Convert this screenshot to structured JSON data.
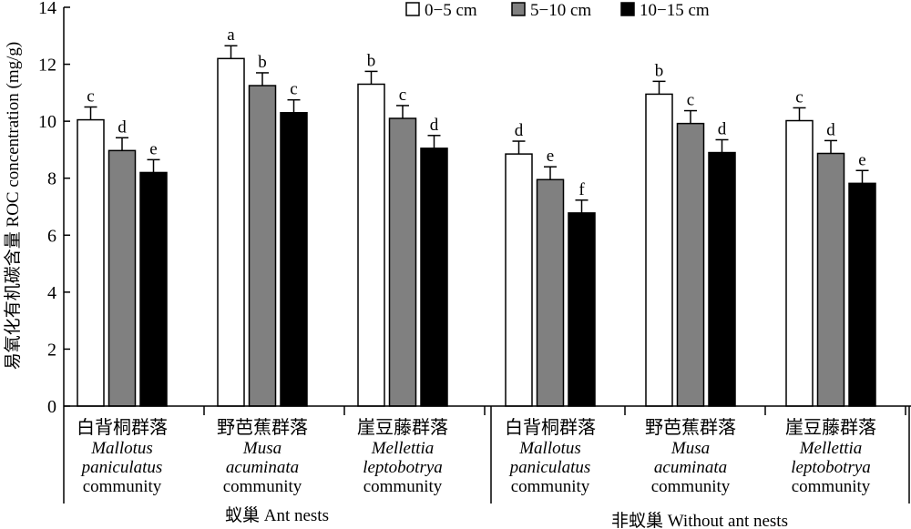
{
  "chart_data": {
    "type": "bar",
    "ylabel": "易氧化有机碳含量 ROC concentration (mg/g)",
    "ylim": [
      0,
      14
    ],
    "yticks": [
      0,
      2,
      4,
      6,
      8,
      10,
      12,
      14
    ],
    "grid": false,
    "legend_placement": "top-right",
    "categories": [
      {
        "cn": "白背桐群落",
        "latin1": "Mallotus",
        "latin2": "paniculatus",
        "en": "community"
      },
      {
        "cn": "野芭蕉群落",
        "latin1": "Musa",
        "latin2": "acuminata",
        "en": "community"
      },
      {
        "cn": "崖豆藤群落",
        "latin1": "Mellettia",
        "latin2": "leptobotrya",
        "en": "community"
      },
      {
        "cn": "白背桐群落",
        "latin1": "Mallotus",
        "latin2": "paniculatus",
        "en": "community"
      },
      {
        "cn": "野芭蕉群落",
        "latin1": "Musa",
        "latin2": "acuminata",
        "en": "community"
      },
      {
        "cn": "崖豆藤群落",
        "latin1": "Mellettia",
        "latin2": "leptobotrya",
        "en": "community"
      }
    ],
    "groups": [
      {
        "label": "蚁巢 Ant nests",
        "categories": [
          0,
          1,
          2
        ]
      },
      {
        "label": "非蚁巢 Without ant nests",
        "categories": [
          3,
          4,
          5
        ]
      }
    ],
    "series": [
      {
        "name": "0−5 cm",
        "color": "#ffffff",
        "values": [
          10.05,
          12.2,
          11.3,
          8.85,
          10.95,
          10.02
        ],
        "errors": [
          0.45,
          0.45,
          0.45,
          0.45,
          0.45,
          0.45
        ],
        "letters": [
          "c",
          "a",
          "b",
          "d",
          "b",
          "c"
        ]
      },
      {
        "name": "5−10 cm",
        "color": "#808080",
        "values": [
          8.97,
          11.25,
          10.1,
          7.95,
          9.92,
          8.87
        ],
        "errors": [
          0.45,
          0.45,
          0.45,
          0.45,
          0.45,
          0.45
        ],
        "letters": [
          "d",
          "b",
          "c",
          "e",
          "c",
          "d"
        ]
      },
      {
        "name": "10−15 cm",
        "color": "#000000",
        "values": [
          8.2,
          10.3,
          9.05,
          6.78,
          8.9,
          7.82
        ],
        "errors": [
          0.45,
          0.45,
          0.45,
          0.45,
          0.45,
          0.45
        ],
        "letters": [
          "e",
          "c",
          "d",
          "f",
          "d",
          "e"
        ]
      }
    ]
  }
}
